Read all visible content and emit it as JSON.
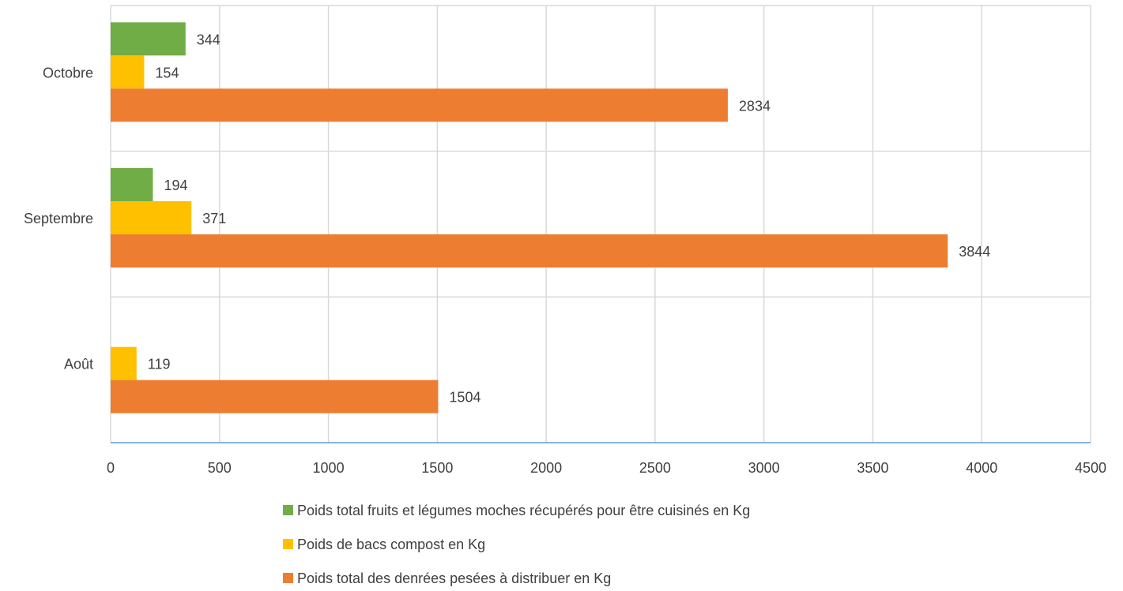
{
  "chart_data": {
    "type": "bar",
    "orientation": "horizontal",
    "categories": [
      "Octobre",
      "Septembre",
      "Août"
    ],
    "series": [
      {
        "name": "Poids total fruits et légumes moches récupérés pour être cuisinés en Kg",
        "color": "#70AD47",
        "values": [
          344,
          194,
          null
        ]
      },
      {
        "name": "Poids de bacs compost en Kg",
        "color": "#FFC000",
        "values": [
          154,
          371,
          119
        ]
      },
      {
        "name": "Poids total des denrées pesées à distribuer en Kg",
        "color": "#ED7D31",
        "values": [
          2834,
          3844,
          1504
        ]
      }
    ],
    "value_axis": {
      "range": [
        0,
        4500
      ],
      "ticks": [
        "0",
        "500",
        "1000",
        "1500",
        "2000",
        "2500",
        "3000",
        "3500",
        "4000",
        "4500"
      ]
    },
    "title": "",
    "xlabel": "",
    "ylabel": "",
    "grid": true,
    "data_labels": true,
    "legend_position": "bottom"
  }
}
